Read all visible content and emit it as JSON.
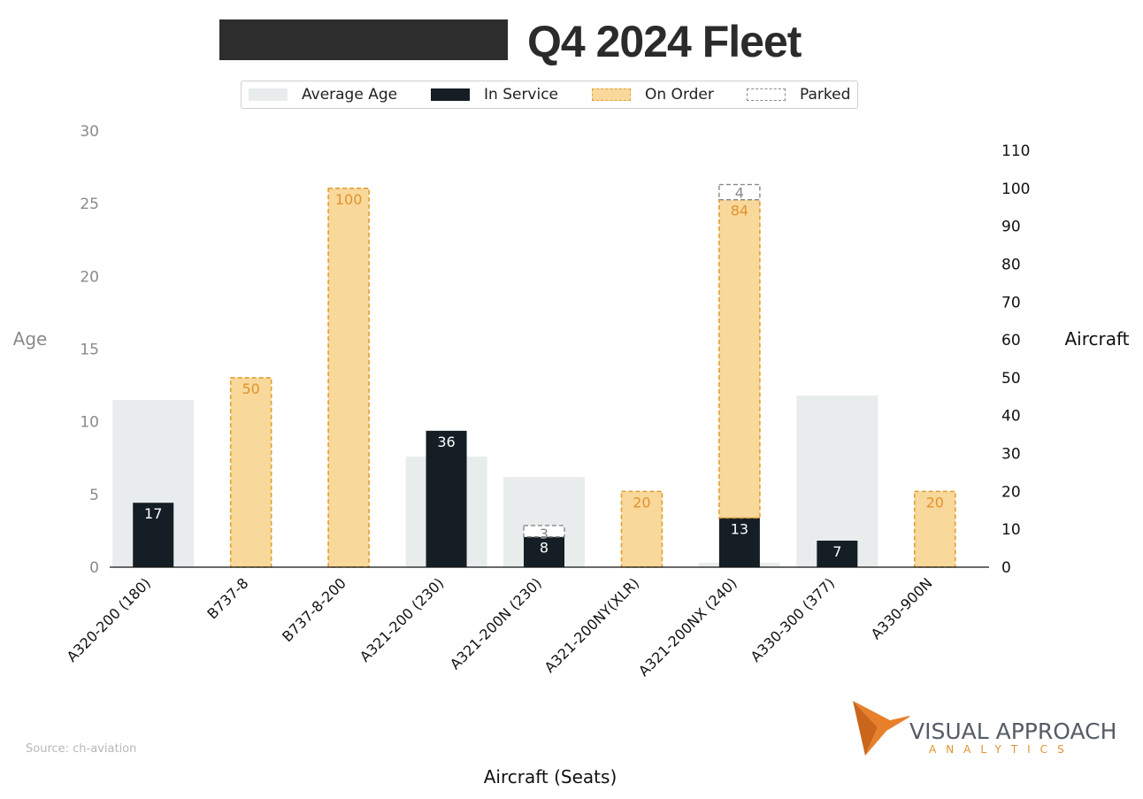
{
  "header": {
    "title": "Q4 2024 Fleet"
  },
  "legend": {
    "items": [
      {
        "label": "Average Age"
      },
      {
        "label": "In Service"
      },
      {
        "label": "On Order"
      },
      {
        "label": "Parked"
      }
    ]
  },
  "footer": {
    "source": "Source: ch-aviation"
  },
  "logo": {
    "main": "VISUAL APPROACH",
    "sub": "ANALYTICS"
  },
  "colors": {
    "average_age": "#e8ecec",
    "in_service": "#141e24",
    "on_order_fill": "#f9d89b",
    "on_order_border": "#e0a033",
    "on_order_label": "#e0932e",
    "parked_border": "#888888",
    "logo_orange": "#e8802b"
  },
  "chart_data": {
    "type": "bar",
    "xlabel": "Aircraft (Seats)",
    "ylabel_left": "Age",
    "ylabel_right": "Aircraft",
    "ylim_left": [
      0,
      30
    ],
    "ylim_right": [
      0,
      110
    ],
    "left_ticks": [
      0,
      5,
      10,
      15,
      20,
      25,
      30
    ],
    "right_ticks": [
      0,
      10,
      20,
      30,
      40,
      50,
      60,
      70,
      80,
      90,
      100,
      110
    ],
    "categories": [
      "A320-200 (180)",
      "B737-8",
      "B737-8-200",
      "A321-200 (230)",
      "A321-200N (230)",
      "A321-200NY(XLR)",
      "A321-200NX (240)",
      "A330-300 (377)",
      "A330-900N"
    ],
    "series": [
      {
        "name": "Average Age",
        "axis": "left",
        "values": [
          11.5,
          0,
          0,
          7.6,
          6.2,
          0,
          0.3,
          11.8,
          0
        ]
      },
      {
        "name": "In Service",
        "axis": "right",
        "values": [
          17,
          0,
          0,
          36,
          8,
          0,
          13,
          7,
          0
        ]
      },
      {
        "name": "On Order",
        "axis": "right",
        "values": [
          0,
          50,
          100,
          0,
          0,
          20,
          84,
          0,
          20
        ]
      },
      {
        "name": "Parked",
        "axis": "right",
        "values": [
          0,
          0,
          0,
          0,
          3,
          0,
          4,
          0,
          0
        ]
      }
    ],
    "grid": false,
    "legend_position": "top"
  }
}
